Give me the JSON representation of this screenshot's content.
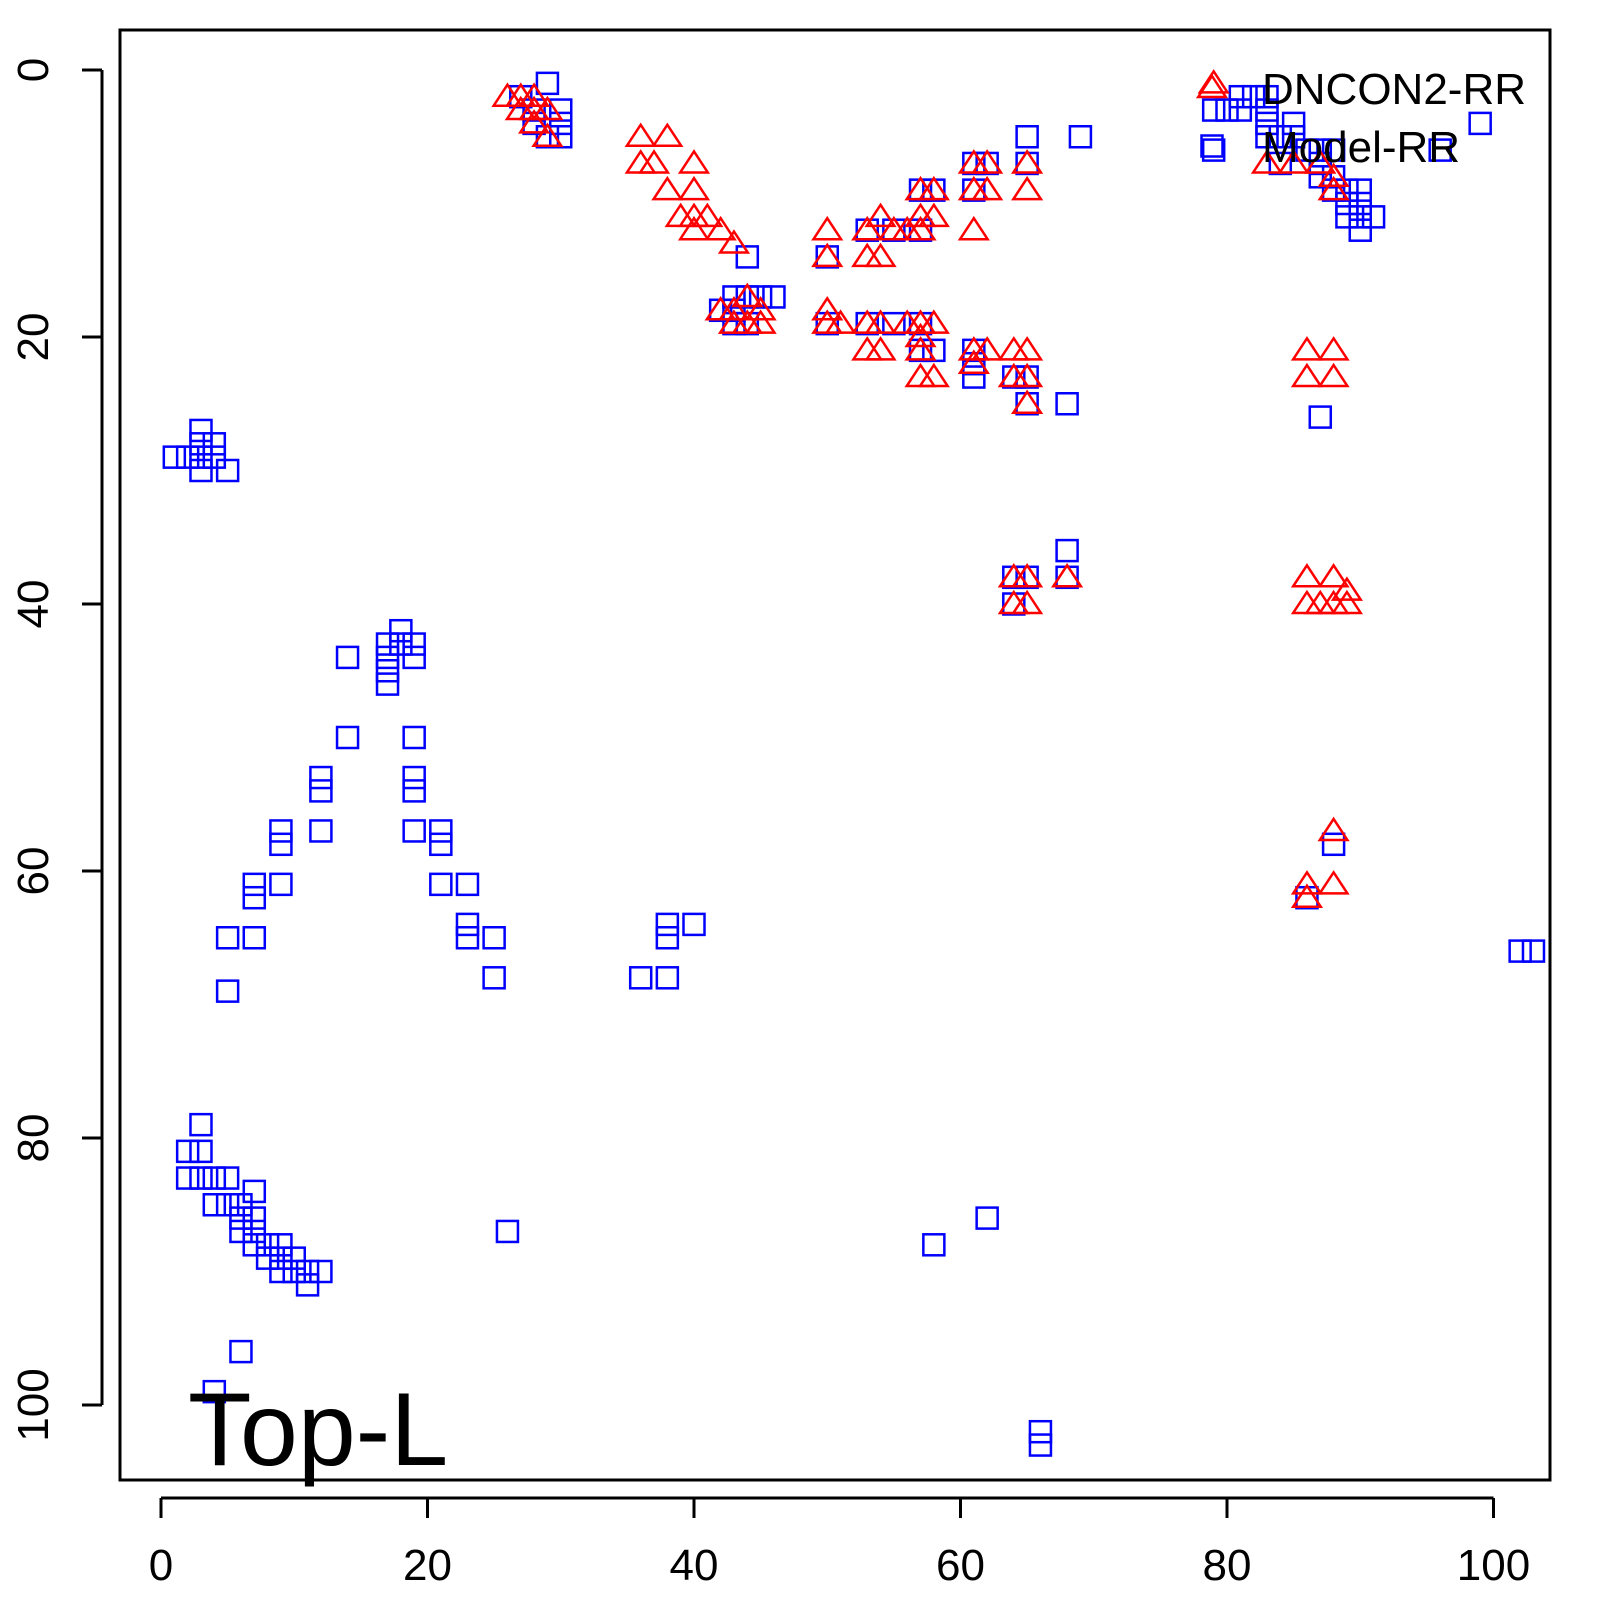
{
  "chart_data": {
    "type": "scatter",
    "title": "",
    "xlabel": "",
    "ylabel": "",
    "panel_label": "Top-L",
    "xlim": [
      -3,
      107
    ],
    "ylim": [
      -3,
      107
    ],
    "y_reversed": true,
    "x_ticks": [
      0,
      20,
      40,
      60,
      80,
      100
    ],
    "y_ticks": [
      0,
      20,
      40,
      60,
      80,
      100
    ],
    "legend_position": "top-right",
    "grid": false,
    "series": [
      {
        "name": "DNCON2-RR",
        "marker": "triangle",
        "color": "#ff0000",
        "points": [
          [
            26,
            2
          ],
          [
            27,
            2
          ],
          [
            28,
            2
          ],
          [
            27,
            3
          ],
          [
            28,
            3
          ],
          [
            29,
            3
          ],
          [
            28,
            4
          ],
          [
            29,
            5
          ],
          [
            36,
            5
          ],
          [
            38,
            5
          ],
          [
            36,
            7
          ],
          [
            37,
            7
          ],
          [
            40,
            7
          ],
          [
            38,
            9
          ],
          [
            40,
            9
          ],
          [
            39,
            11
          ],
          [
            40,
            11
          ],
          [
            41,
            11
          ],
          [
            40,
            12
          ],
          [
            42,
            12
          ],
          [
            43,
            13
          ],
          [
            50,
            12
          ],
          [
            50,
            14
          ],
          [
            53,
            12
          ],
          [
            54,
            11
          ],
          [
            55,
            12
          ],
          [
            53,
            14
          ],
          [
            54,
            14
          ],
          [
            56,
            12
          ],
          [
            57,
            9
          ],
          [
            58,
            9
          ],
          [
            57,
            11
          ],
          [
            58,
            11
          ],
          [
            57,
            12
          ],
          [
            61,
            12
          ],
          [
            61,
            7
          ],
          [
            62,
            7
          ],
          [
            65,
            7
          ],
          [
            61,
            9
          ],
          [
            62,
            9
          ],
          [
            65,
            9
          ],
          [
            42,
            18
          ],
          [
            43,
            18
          ],
          [
            44,
            17
          ],
          [
            45,
            18
          ],
          [
            43,
            19
          ],
          [
            44,
            19
          ],
          [
            45,
            19
          ],
          [
            50,
            18
          ],
          [
            51,
            19
          ],
          [
            50,
            19
          ],
          [
            53,
            19
          ],
          [
            54,
            19
          ],
          [
            53,
            21
          ],
          [
            54,
            21
          ],
          [
            56,
            19
          ],
          [
            57,
            19
          ],
          [
            58,
            19
          ],
          [
            57,
            20
          ],
          [
            57,
            21
          ],
          [
            57,
            23
          ],
          [
            58,
            23
          ],
          [
            61,
            21
          ],
          [
            62,
            21
          ],
          [
            64,
            21
          ],
          [
            65,
            21
          ],
          [
            61,
            22
          ],
          [
            64,
            23
          ],
          [
            65,
            23
          ],
          [
            65,
            25
          ],
          [
            86,
            21
          ],
          [
            88,
            21
          ],
          [
            86,
            23
          ],
          [
            88,
            23
          ],
          [
            64,
            38
          ],
          [
            65,
            38
          ],
          [
            68,
            38
          ],
          [
            64,
            40
          ],
          [
            65,
            40
          ],
          [
            86,
            38
          ],
          [
            88,
            38
          ],
          [
            89,
            39
          ],
          [
            86,
            40
          ],
          [
            87,
            40
          ],
          [
            88,
            40
          ],
          [
            89,
            40
          ],
          [
            88,
            57
          ],
          [
            86,
            61
          ],
          [
            88,
            61
          ],
          [
            86,
            62
          ],
          [
            83,
            7
          ],
          [
            85,
            7
          ],
          [
            87,
            7
          ],
          [
            88,
            8
          ],
          [
            88,
            9
          ],
          [
            79,
            1
          ]
        ]
      },
      {
        "name": "Model-RR",
        "marker": "square",
        "color": "#0000ff",
        "points": [
          [
            29,
            1
          ],
          [
            27,
            2
          ],
          [
            28,
            3
          ],
          [
            30,
            3
          ],
          [
            28,
            4
          ],
          [
            30,
            4
          ],
          [
            29,
            5
          ],
          [
            30,
            5
          ],
          [
            44,
            14
          ],
          [
            50,
            14
          ],
          [
            53,
            12
          ],
          [
            55,
            12
          ],
          [
            57,
            9
          ],
          [
            58,
            9
          ],
          [
            57,
            12
          ],
          [
            61,
            7
          ],
          [
            62,
            7
          ],
          [
            61,
            9
          ],
          [
            65,
            5
          ],
          [
            65,
            7
          ],
          [
            69,
            5
          ],
          [
            42,
            18
          ],
          [
            43,
            17
          ],
          [
            44,
            17
          ],
          [
            45,
            17
          ],
          [
            46,
            17
          ],
          [
            43,
            18
          ],
          [
            43,
            19
          ],
          [
            44,
            19
          ],
          [
            50,
            19
          ],
          [
            53,
            19
          ],
          [
            55,
            19
          ],
          [
            57,
            19
          ],
          [
            57,
            21
          ],
          [
            58,
            21
          ],
          [
            61,
            21
          ],
          [
            61,
            22
          ],
          [
            61,
            23
          ],
          [
            64,
            23
          ],
          [
            65,
            23
          ],
          [
            65,
            25
          ],
          [
            68,
            25
          ],
          [
            79,
            3
          ],
          [
            80,
            3
          ],
          [
            81,
            2
          ],
          [
            82,
            2
          ],
          [
            83,
            2
          ],
          [
            81,
            3
          ],
          [
            83,
            3
          ],
          [
            83,
            4
          ],
          [
            83,
            5
          ],
          [
            84,
            5
          ],
          [
            85,
            4
          ],
          [
            85,
            5
          ],
          [
            84,
            7
          ],
          [
            86,
            6
          ],
          [
            87,
            6
          ],
          [
            88,
            6
          ],
          [
            87,
            7
          ],
          [
            87,
            8
          ],
          [
            88,
            8
          ],
          [
            88,
            9
          ],
          [
            89,
            9
          ],
          [
            90,
            9
          ],
          [
            89,
            10
          ],
          [
            90,
            10
          ],
          [
            89,
            11
          ],
          [
            90,
            11
          ],
          [
            91,
            11
          ],
          [
            90,
            12
          ],
          [
            96,
            6
          ],
          [
            99,
            4
          ],
          [
            79,
            6
          ],
          [
            87,
            26
          ],
          [
            64,
            38
          ],
          [
            65,
            38
          ],
          [
            64,
            40
          ],
          [
            68,
            36
          ],
          [
            68,
            38
          ],
          [
            88,
            58
          ],
          [
            86,
            62
          ],
          [
            102,
            66
          ],
          [
            103,
            66
          ],
          [
            1,
            29
          ],
          [
            2,
            29
          ],
          [
            3,
            27
          ],
          [
            3,
            28
          ],
          [
            4,
            28
          ],
          [
            3,
            29
          ],
          [
            4,
            29
          ],
          [
            3,
            30
          ],
          [
            5,
            30
          ],
          [
            14,
            44
          ],
          [
            17,
            43
          ],
          [
            17,
            44
          ],
          [
            17,
            45
          ],
          [
            17,
            46
          ],
          [
            18,
            42
          ],
          [
            18,
            43
          ],
          [
            19,
            43
          ],
          [
            19,
            44
          ],
          [
            14,
            50
          ],
          [
            19,
            50
          ],
          [
            12,
            53
          ],
          [
            12,
            54
          ],
          [
            19,
            53
          ],
          [
            19,
            54
          ],
          [
            12,
            57
          ],
          [
            19,
            57
          ],
          [
            21,
            57
          ],
          [
            21,
            58
          ],
          [
            9,
            57
          ],
          [
            9,
            58
          ],
          [
            9,
            61
          ],
          [
            7,
            61
          ],
          [
            7,
            62
          ],
          [
            21,
            61
          ],
          [
            23,
            61
          ],
          [
            23,
            64
          ],
          [
            23,
            65
          ],
          [
            25,
            65
          ],
          [
            25,
            68
          ],
          [
            5,
            65
          ],
          [
            7,
            65
          ],
          [
            5,
            69
          ],
          [
            36,
            68
          ],
          [
            38,
            68
          ],
          [
            38,
            64
          ],
          [
            38,
            65
          ],
          [
            40,
            64
          ],
          [
            3,
            79
          ],
          [
            2,
            81
          ],
          [
            3,
            81
          ],
          [
            2,
            83
          ],
          [
            3,
            83
          ],
          [
            4,
            83
          ],
          [
            5,
            83
          ],
          [
            4,
            85
          ],
          [
            5,
            85
          ],
          [
            6,
            85
          ],
          [
            7,
            84
          ],
          [
            6,
            86
          ],
          [
            7,
            86
          ],
          [
            6,
            87
          ],
          [
            7,
            87
          ],
          [
            8,
            88
          ],
          [
            7,
            88
          ],
          [
            8,
            89
          ],
          [
            9,
            88
          ],
          [
            9,
            89
          ],
          [
            9,
            90
          ],
          [
            10,
            89
          ],
          [
            10,
            90
          ],
          [
            11,
            90
          ],
          [
            11,
            91
          ],
          [
            12,
            90
          ],
          [
            26,
            87
          ],
          [
            58,
            88
          ],
          [
            62,
            86
          ],
          [
            6,
            96
          ],
          [
            4,
            99
          ],
          [
            66,
            102
          ],
          [
            66,
            103
          ]
        ]
      }
    ]
  }
}
